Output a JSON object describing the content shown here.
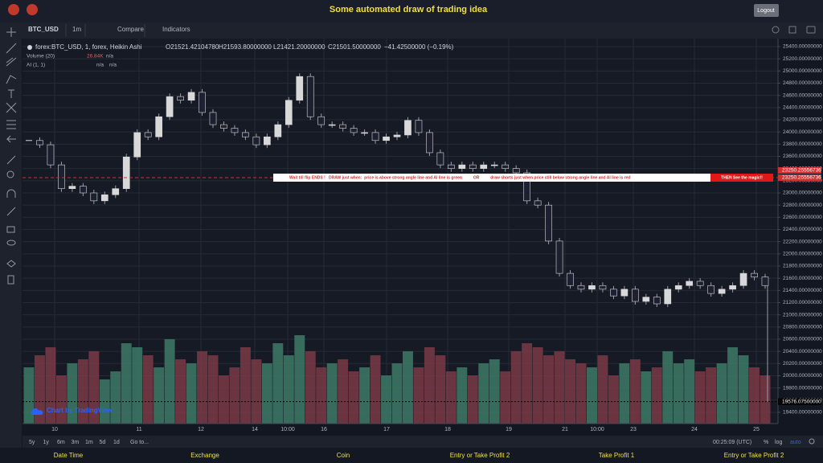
{
  "header": {
    "title": "Some automated draw of trading idea",
    "logout": "Logout"
  },
  "toolbar": {
    "symbol": "BTC_USD",
    "interval": "1m",
    "compare": "Compare",
    "indicators": "Indicators"
  },
  "legend": {
    "symbol": "forex:BTC_USD, 1, forex, Heikin Ashi",
    "open": "O21521.42104780",
    "high": "H21593.80000000",
    "low": "L21421.20000000",
    "close": "C21501.50000000",
    "change": "−41.42500000 (−0.19%)",
    "volume": "Volume (20)",
    "volume_value": "26.84K",
    "volume_na": "n/a",
    "ai": "AI (1, 1)",
    "ai_na_1": "n/a",
    "ai_na_2": "n/a"
  },
  "annotation": {
    "text": "Wait till flip ENDS !   DRAW just when:  price is above strong angle line and AI line is green          OR          draw shorts just when price still below strong angle line and AI line is red",
    "magic": "THEN See the magic!!"
  },
  "watermark": "Chart by TradingView",
  "chart_data": {
    "type": "candlestick",
    "close": [
      23860,
      23790,
      23460,
      23070,
      23110,
      23000,
      22870,
      22970,
      23070,
      23590,
      23990,
      23920,
      24250,
      24580,
      24520,
      24650,
      24320,
      24120,
      24060,
      23990,
      23920,
      23790,
      23920,
      24120,
      24520,
      24910,
      24250,
      24120,
      24120,
      24060,
      23990,
      23990,
      23860,
      23920,
      23950,
      24190,
      23990,
      23660,
      23460,
      23400,
      23460,
      23400,
      23460,
      23460,
      23400,
      23330,
      22870,
      22800,
      22210,
      21680,
      21480,
      21420,
      21480,
      21420,
      21310,
      21420,
      21220,
      21290,
      21180,
      21420,
      21480,
      21550,
      21480,
      21350,
      21420,
      21480,
      21680,
      21620,
      21480
    ],
    "volume": [
      70,
      85,
      95,
      60,
      75,
      80,
      90,
      55,
      65,
      100,
      95,
      85,
      70,
      105,
      80,
      75,
      90,
      85,
      60,
      70,
      95,
      80,
      75,
      100,
      85,
      110,
      90,
      70,
      75,
      80,
      65,
      70,
      85,
      60,
      75,
      90,
      70,
      95,
      85,
      65,
      70,
      60,
      75,
      80,
      65,
      90,
      100,
      95,
      85,
      90,
      80,
      75,
      70,
      85,
      60,
      75,
      80,
      65,
      70,
      90,
      75,
      80,
      65,
      70,
      75,
      95,
      85,
      70,
      60
    ],
    "up_color": "#d8d8d8",
    "down_color": "#1c2030",
    "volume_up_color": "#3d7a66",
    "volume_down_color": "#7a3a46",
    "ylim": [
      19215,
      25532
    ],
    "yticks": [
      {
        "value": 19400,
        "label": "19400.00000000"
      },
      {
        "value": 19600,
        "label": "19600.00000000"
      },
      {
        "value": 19800,
        "label": "19800.00000000"
      },
      {
        "value": 20000,
        "label": "20000.00000000"
      },
      {
        "value": 20200,
        "label": "20200.00000000"
      },
      {
        "value": 20400,
        "label": "20400.00000000"
      },
      {
        "value": 20600,
        "label": "20600.00000000"
      },
      {
        "value": 20800,
        "label": "20800.00000000"
      },
      {
        "value": 21000,
        "label": "21000.00000000"
      },
      {
        "value": 21200,
        "label": "21200.00000000"
      },
      {
        "value": 21400,
        "label": "21400.00000000"
      },
      {
        "value": 21600,
        "label": "21600.00000000"
      },
      {
        "value": 21800,
        "label": "21800.00000000"
      },
      {
        "value": 22000,
        "label": "22000.00000000"
      },
      {
        "value": 22200,
        "label": "22200.00000000"
      },
      {
        "value": 22400,
        "label": "22400.00000000"
      },
      {
        "value": 22600,
        "label": "22600.00000000"
      },
      {
        "value": 22800,
        "label": "22800.00000000"
      },
      {
        "value": 23000,
        "label": "23000.00000000"
      },
      {
        "value": 23200,
        "label": "23200.00000000"
      },
      {
        "value": 23400,
        "label": "23400.00000000"
      },
      {
        "value": 23600,
        "label": "23600.00000000"
      },
      {
        "value": 23800,
        "label": "23800.00000000"
      },
      {
        "value": 24000,
        "label": "24000.00000000"
      },
      {
        "value": 24200,
        "label": "24200.00000000"
      },
      {
        "value": 24400,
        "label": "24400.00000000"
      },
      {
        "value": 24600,
        "label": "24600.00000000"
      },
      {
        "value": 24800,
        "label": "24800.00000000"
      },
      {
        "value": 25000,
        "label": "25000.00000000"
      },
      {
        "value": 25200,
        "label": "25200.00000000"
      },
      {
        "value": 25400,
        "label": "25400.00000000"
      }
    ],
    "xticks": [
      "10",
      "11",
      "12",
      "14",
      "10:00",
      "16",
      "17",
      "18",
      "19",
      "21",
      "10:00",
      "23",
      "24",
      "25"
    ],
    "price_lines": [
      23250.25556736,
      23250.25556736,
      {
        "value": 19576.075,
        "label": "19576.07500000"
      }
    ],
    "grid": true
  },
  "range_bar": {
    "ranges": [
      "5y",
      "1y",
      "6m",
      "3m",
      "1m",
      "5d",
      "1d"
    ],
    "goto": "Go to...",
    "clock": "00:25:09 (UTC)",
    "percent": "%",
    "log": "log",
    "auto": "auto"
  },
  "footer": {
    "columns": [
      "Date Time",
      "Exchange",
      "Coin",
      "Entry or Take Profit 2",
      "Take Profit 1",
      "Entry or Take Profit 2"
    ]
  }
}
